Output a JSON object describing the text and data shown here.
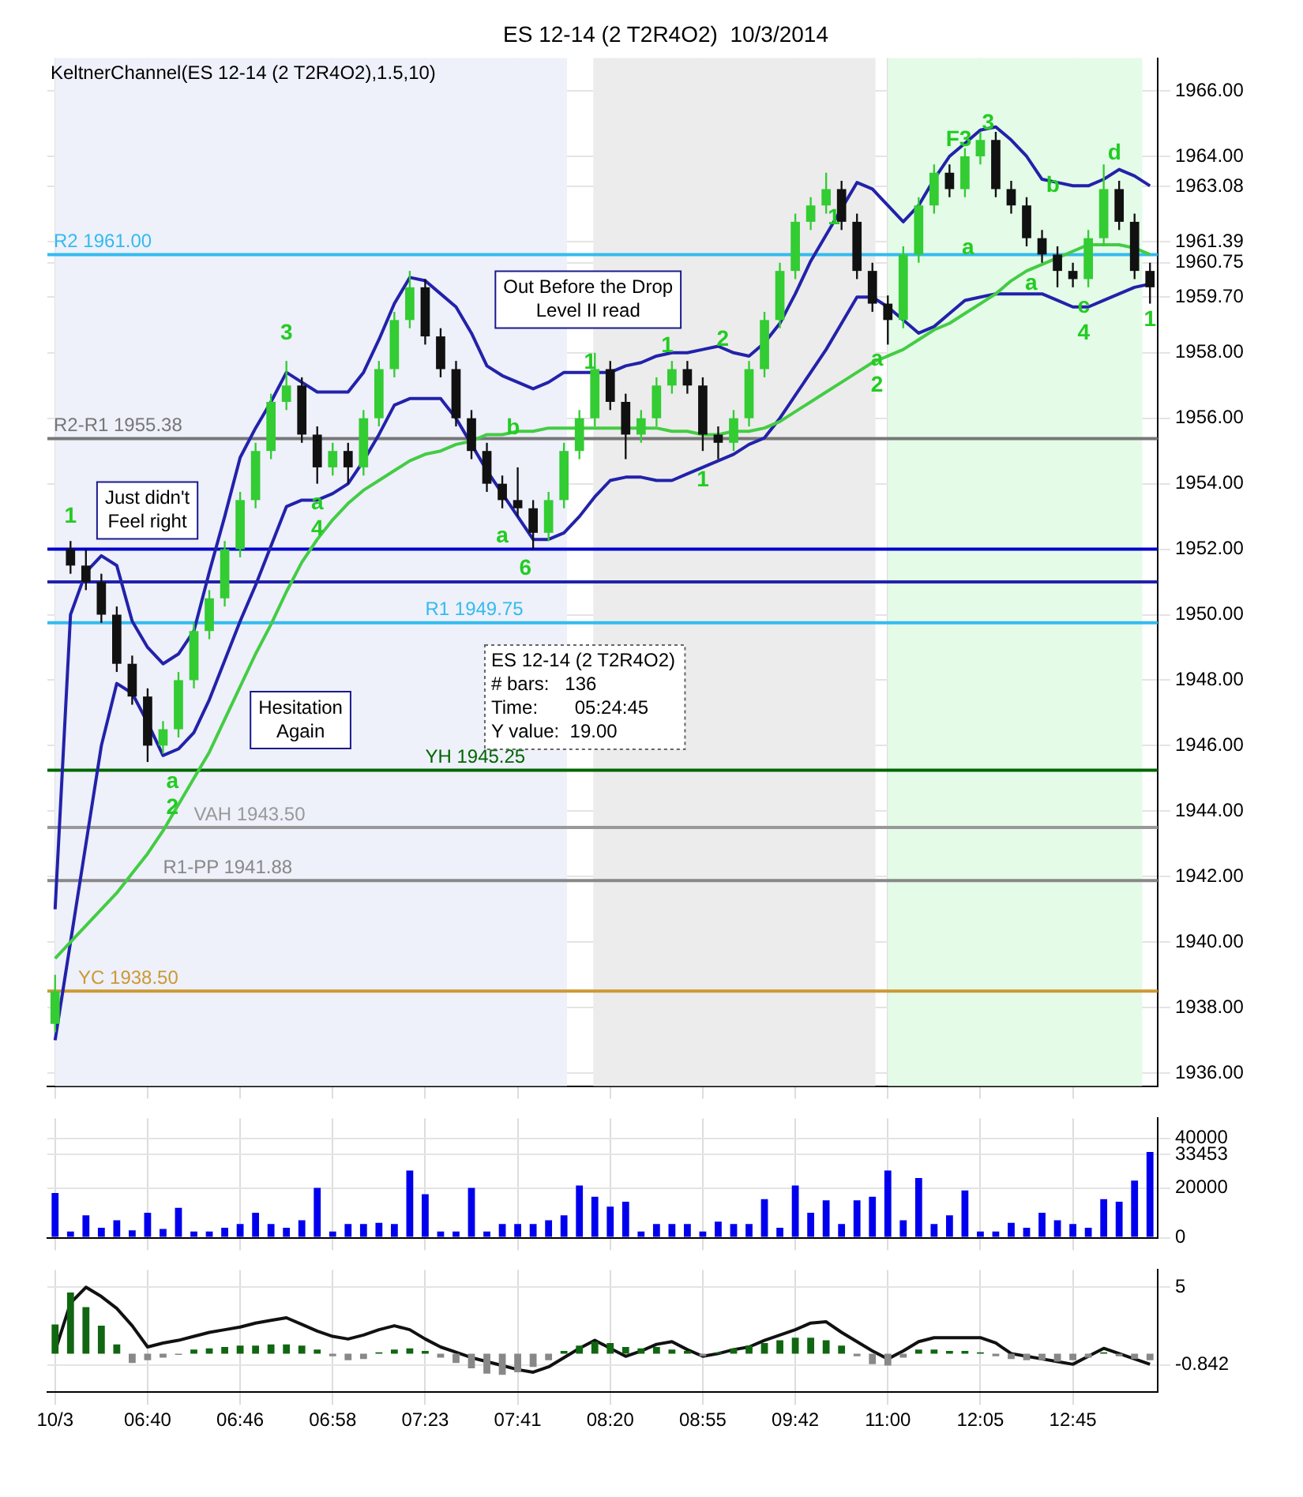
{
  "chart_data": [
    {
      "type": "candlestick",
      "title": "ES 12-14 (2 T2R4O2)  10/3/2014",
      "subtitle": "KeltnerChannel(ES 12-14 (2 T2R4O2),1.5,10)",
      "categories": [
        null,
        null,
        null,
        null,
        null,
        null,
        null,
        null,
        null,
        null,
        null,
        null,
        null,
        null,
        null,
        null,
        null,
        null,
        null,
        null,
        null,
        null,
        null,
        null,
        null,
        null,
        null,
        null,
        null,
        null,
        null,
        null,
        null,
        null,
        null,
        null,
        null,
        null,
        null,
        null,
        null,
        null,
        null,
        null,
        null,
        null,
        null,
        null,
        null,
        null,
        null,
        null,
        null,
        null,
        null,
        null,
        null,
        null,
        null,
        null,
        null,
        null,
        null,
        null,
        null,
        null,
        null,
        null,
        null,
        null,
        null,
        null
      ],
      "ohlc": [
        [
          1937.5,
          1939,
          1937.25,
          1938.5
        ],
        [
          1952,
          1952.25,
          1951.25,
          1951.5
        ],
        [
          1951.5,
          1952,
          1950.75,
          1951
        ],
        [
          1951,
          1951.25,
          1949.75,
          1950
        ],
        [
          1950,
          1950.25,
          1948.25,
          1948.5
        ],
        [
          1948.5,
          1948.75,
          1947.25,
          1947.5
        ],
        [
          1947.5,
          1947.75,
          1945.5,
          1946
        ],
        [
          1946,
          1946.75,
          1945.75,
          1946.5
        ],
        [
          1946.5,
          1948.25,
          1946.25,
          1948
        ],
        [
          1948,
          1949.75,
          1947.75,
          1949.5
        ],
        [
          1949.5,
          1950.75,
          1949.25,
          1950.5
        ],
        [
          1950.5,
          1952.25,
          1950.25,
          1952
        ],
        [
          1952,
          1953.75,
          1951.75,
          1953.5
        ],
        [
          1953.5,
          1955.25,
          1953.25,
          1955
        ],
        [
          1955,
          1956.75,
          1954.75,
          1956.5
        ],
        [
          1956.5,
          1957.75,
          1956.25,
          1957
        ],
        [
          1957,
          1957.25,
          1955.25,
          1955.5
        ],
        [
          1955.5,
          1955.75,
          1954,
          1954.5
        ],
        [
          1954.5,
          1955.25,
          1954.25,
          1955
        ],
        [
          1955,
          1955.25,
          1954,
          1954.5
        ],
        [
          1954.5,
          1956.25,
          1954.25,
          1956
        ],
        [
          1956,
          1957.75,
          1955.75,
          1957.5
        ],
        [
          1957.5,
          1959.25,
          1957.25,
          1959
        ],
        [
          1959,
          1960.5,
          1958.75,
          1960
        ],
        [
          1960,
          1960.25,
          1958.25,
          1958.5
        ],
        [
          1958.5,
          1958.75,
          1957.25,
          1957.5
        ],
        [
          1957.5,
          1957.75,
          1955.75,
          1956
        ],
        [
          1956,
          1956.25,
          1954.75,
          1955
        ],
        [
          1955,
          1955.25,
          1953.75,
          1954
        ],
        [
          1954,
          1954.25,
          1953.25,
          1953.5
        ],
        [
          1953.5,
          1954.5,
          1953,
          1953.25
        ],
        [
          1953.25,
          1953.5,
          1952,
          1952.5
        ],
        [
          1952.5,
          1953.75,
          1952.25,
          1953.5
        ],
        [
          1953.5,
          1955.25,
          1953.25,
          1955
        ],
        [
          1955,
          1956.25,
          1954.75,
          1956
        ],
        [
          1956,
          1958,
          1955.75,
          1957.5
        ],
        [
          1957.5,
          1957.75,
          1956.25,
          1956.5
        ],
        [
          1956.5,
          1956.75,
          1954.75,
          1955.5
        ],
        [
          1955.5,
          1956.25,
          1955.25,
          1956
        ],
        [
          1956,
          1957.25,
          1955.75,
          1957
        ],
        [
          1957,
          1957.75,
          1956.75,
          1957.5
        ],
        [
          1957.5,
          1957.75,
          1956.75,
          1957
        ],
        [
          1957,
          1957.25,
          1955,
          1955.5
        ],
        [
          1955.5,
          1955.75,
          1954.75,
          1955.25
        ],
        [
          1955.25,
          1956.25,
          1955,
          1956
        ],
        [
          1956,
          1957.75,
          1955.75,
          1957.5
        ],
        [
          1957.5,
          1959.25,
          1957.25,
          1959
        ],
        [
          1959,
          1960.75,
          1958.75,
          1960.5
        ],
        [
          1960.5,
          1962.25,
          1960.25,
          1962
        ],
        [
          1962,
          1962.75,
          1961.75,
          1962.5
        ],
        [
          1962.5,
          1963.5,
          1962.25,
          1963
        ],
        [
          1963,
          1963.25,
          1961.75,
          1962
        ],
        [
          1962,
          1962.25,
          1960.25,
          1960.5
        ],
        [
          1960.5,
          1960.75,
          1959.25,
          1959.5
        ],
        [
          1959.5,
          1959.75,
          1958.25,
          1959
        ],
        [
          1959,
          1961.25,
          1958.75,
          1961
        ],
        [
          1961,
          1962.75,
          1960.75,
          1962.5
        ],
        [
          1962.5,
          1963.75,
          1962.25,
          1963.5
        ],
        [
          1963.5,
          1963.75,
          1962.75,
          1963
        ],
        [
          1963,
          1964.25,
          1962.75,
          1964
        ],
        [
          1964,
          1964.75,
          1963.75,
          1964.5
        ],
        [
          1964.5,
          1964.75,
          1962.75,
          1963
        ],
        [
          1963,
          1963.25,
          1962.25,
          1962.5
        ],
        [
          1962.5,
          1962.75,
          1961.25,
          1961.5
        ],
        [
          1961.5,
          1961.75,
          1960.75,
          1961
        ],
        [
          1961,
          1961.25,
          1960,
          1960.5
        ],
        [
          1960.5,
          1960.75,
          1960,
          1960.25
        ],
        [
          1960.25,
          1961.75,
          1960,
          1961.5
        ],
        [
          1961.5,
          1963.75,
          1961.25,
          1963
        ],
        [
          1963,
          1963.25,
          1961.75,
          1962
        ],
        [
          1962,
          1962.25,
          1960.25,
          1960.5
        ],
        [
          1960.5,
          1960.75,
          1959.5,
          1960
        ]
      ],
      "series": [
        {
          "type": "line",
          "color": "#44cc44",
          "values": [
            1939.5,
            1940,
            1940.5,
            1941,
            1941.5,
            1942.1,
            1942.7,
            1943.4,
            1944.2,
            1945,
            1945.8,
            1946.8,
            1947.8,
            1948.8,
            1949.7,
            1950.7,
            1951.6,
            1952.3,
            1952.9,
            1953.4,
            1953.8,
            1954.1,
            1954.4,
            1954.7,
            1954.9,
            1955,
            1955.2,
            1955.3,
            1955.5,
            1955.5,
            1955.6,
            1955.6,
            1955.7,
            1955.7,
            1955.7,
            1955.7,
            1955.7,
            1955.7,
            1955.7,
            1955.7,
            1955.6,
            1955.6,
            1955.5,
            1955.5,
            1955.6,
            1955.6,
            1955.7,
            1955.9,
            1956.2,
            1956.5,
            1956.8,
            1957.1,
            1957.4,
            1957.7,
            1957.9,
            1958.1,
            1958.4,
            1958.7,
            1958.9,
            1959.2,
            1959.5,
            1959.8,
            1960.2,
            1960.5,
            1960.7,
            1960.9,
            1961.1,
            1961.3,
            1961.3,
            1961.3,
            1961.2,
            1961
          ]
        },
        {
          "type": "line",
          "color": "#2222aa",
          "values": [
            1941,
            1950,
            1951.3,
            1951.8,
            1951.5,
            1949.8,
            1949,
            1948.5,
            1948.8,
            1949.5,
            1951.3,
            1953,
            1954.8,
            1955.7,
            1956.5,
            1957.4,
            1957.1,
            1956.8,
            1956.8,
            1956.8,
            1957.4,
            1958.4,
            1959.5,
            1960.3,
            1960.2,
            1959.8,
            1959.4,
            1958.6,
            1957.6,
            1957.3,
            1957.1,
            1956.9,
            1957.1,
            1957.4,
            1957.4,
            1957.4,
            1957.4,
            1957.6,
            1957.7,
            1957.9,
            1958,
            1958,
            1958.1,
            1958.2,
            1958,
            1957.9,
            1958.3,
            1958.9,
            1959.8,
            1960.8,
            1961.6,
            1962.4,
            1963.2,
            1963,
            1962.5,
            1962,
            1962.5,
            1963.3,
            1964,
            1964.4,
            1964.8,
            1964.9,
            1964.5,
            1964,
            1963.3,
            1963.2,
            1963.1,
            1963.1,
            1963.3,
            1963.6,
            1963.4,
            1963.1
          ]
        },
        {
          "type": "line",
          "color": "#2222aa",
          "values": [
            1937,
            1940,
            1943,
            1946,
            1947.9,
            1947.6,
            1946.7,
            1945.7,
            1945.9,
            1946.4,
            1947.4,
            1948.6,
            1949.8,
            1950.9,
            1952.1,
            1953.3,
            1953.5,
            1953.5,
            1953.7,
            1954,
            1954.7,
            1955.5,
            1956.4,
            1956.6,
            1956.6,
            1956.6,
            1956,
            1955.2,
            1954.4,
            1953.7,
            1953,
            1952.3,
            1952.3,
            1952.5,
            1953,
            1953.6,
            1954.1,
            1954.2,
            1954.2,
            1954.1,
            1954.1,
            1954.3,
            1954.5,
            1954.7,
            1954.9,
            1955.2,
            1955.4,
            1956,
            1956.7,
            1957.4,
            1958.1,
            1958.9,
            1959.7,
            1959.7,
            1959.4,
            1959,
            1958.6,
            1958.8,
            1959.2,
            1959.6,
            1959.7,
            1959.8,
            1959.8,
            1959.8,
            1959.8,
            1959.6,
            1959.4,
            1959.4,
            1959.6,
            1959.8,
            1960,
            1960.1
          ]
        }
      ],
      "ylim": [
        1935.6,
        1967
      ],
      "yticks": [
        {
          "value": 1936,
          "label": "1936.00"
        },
        {
          "value": 1938,
          "label": "1938.00"
        },
        {
          "value": 1940,
          "label": "1940.00"
        },
        {
          "value": 1942,
          "label": "1942.00"
        },
        {
          "value": 1944,
          "label": "1944.00"
        },
        {
          "value": 1946,
          "label": "1946.00"
        },
        {
          "value": 1948,
          "label": "1948.00"
        },
        {
          "value": 1950,
          "label": "1950.00"
        },
        {
          "value": 1952,
          "label": "1952.00"
        },
        {
          "value": 1954,
          "label": "1954.00"
        },
        {
          "value": 1956,
          "label": "1956.00"
        },
        {
          "value": 1958,
          "label": "1958.00"
        },
        {
          "value": 1959.7,
          "label": "1959.70"
        },
        1960.75,
        1961.39,
        1963.08,
        {
          "value": 1964,
          "label": "1964.00"
        },
        {
          "value": 1966,
          "label": "1966.00"
        }
      ],
      "tick_labels": "y",
      "grid": true,
      "legend": false,
      "marker": "none",
      "ref_lines": [
        {
          "axis": "y",
          "value": 1961,
          "label": "R2 1961.00",
          "color": "#33bbee"
        },
        {
          "axis": "y",
          "value": 1955.38,
          "label": "R2-R1 1955.38",
          "color": "#777777"
        },
        {
          "axis": "y",
          "value": 1952,
          "label": null,
          "color": "#0000cc"
        },
        {
          "axis": "y",
          "value": 1951,
          "label": null,
          "color": "#2222aa"
        },
        {
          "axis": "y",
          "value": 1949.75,
          "label": "R1 1949.75",
          "color": "#33bbee"
        },
        {
          "axis": "y",
          "value": 1945.25,
          "label": "YH 1945.25",
          "color": "#006600"
        },
        {
          "axis": "y",
          "value": 1943.5,
          "label": "VAH 1943.50",
          "color": "#999999"
        },
        {
          "axis": "y",
          "value": 1941.88,
          "label": "R1-PP 1941.88",
          "color": "#888888"
        },
        {
          "axis": "y",
          "value": 1938.5,
          "label": "YC 1938.50",
          "color": "#cc9933"
        }
      ],
      "annotations": [
        "Just didn't Feel right",
        "Out Before the Drop Level II read",
        "Hesitation Again",
        "ES 12-14 (2 T2R4O2)",
        "# bars:   136",
        "Time:       05:24:45",
        "Y value:  19.00",
        "1",
        "a",
        "2",
        "3",
        "a",
        "4",
        "b",
        "a",
        "6",
        "1",
        "1",
        "2",
        "1",
        "1",
        "a",
        "2",
        "F3",
        "3",
        "a",
        "b",
        "a",
        "c",
        "4",
        "d",
        "1"
      ]
    },
    {
      "type": "bar",
      "color": "#0000ee",
      "categories": [
        null,
        null,
        null,
        null,
        null,
        null,
        null,
        null,
        null,
        null,
        null,
        null,
        null,
        null,
        null,
        null,
        null,
        null,
        null,
        null,
        null,
        null,
        null,
        null,
        null,
        null,
        null,
        null,
        null,
        null,
        null,
        null,
        null,
        null,
        null,
        null,
        null,
        null,
        null,
        null,
        null,
        null,
        null,
        null,
        null,
        null,
        null,
        null,
        null,
        null,
        null,
        null,
        null,
        null,
        null,
        null,
        null,
        null,
        null,
        null,
        null,
        null,
        null,
        null,
        null,
        null,
        null,
        null,
        null,
        null,
        null,
        null
      ],
      "values": [
        18000,
        2500,
        9000,
        4000,
        7000,
        3000,
        10000,
        3500,
        12000,
        2500,
        2500,
        4000,
        5500,
        10000,
        5500,
        4000,
        7000,
        20000,
        2500,
        5500,
        5500,
        6000,
        5500,
        27000,
        17500,
        2500,
        2500,
        20000,
        2500,
        5500,
        5500,
        5500,
        7000,
        9000,
        21000,
        16500,
        12500,
        14500,
        2500,
        5500,
        5500,
        5500,
        2500,
        6500,
        5500,
        5500,
        15500,
        4000,
        21000,
        10000,
        15000,
        5500,
        15000,
        16500,
        27000,
        7000,
        24000,
        5500,
        9000,
        19000,
        2500,
        2500,
        6000,
        4000,
        10000,
        7000,
        5500,
        4000,
        15500,
        14500,
        23000,
        34500
      ],
      "ylim": [
        0,
        48000
      ],
      "yticks": [
        0,
        20000,
        33453,
        40000
      ],
      "tick_labels": "y",
      "grid": true,
      "legend": false
    },
    {
      "type": "bar",
      "categories": [
        "10/3",
        null,
        null,
        null,
        null,
        null,
        "06:40",
        null,
        null,
        null,
        null,
        null,
        "06:46",
        null,
        null,
        null,
        null,
        null,
        "06:58",
        null,
        null,
        null,
        null,
        null,
        "07:23",
        null,
        null,
        null,
        null,
        null,
        "07:41",
        null,
        null,
        null,
        null,
        null,
        "08:20",
        null,
        null,
        null,
        null,
        null,
        "08:55",
        null,
        null,
        null,
        null,
        null,
        "09:42",
        null,
        null,
        null,
        null,
        null,
        "11:00",
        null,
        null,
        null,
        null,
        null,
        "12:05",
        null,
        null,
        null,
        null,
        null,
        "12:45",
        null,
        null,
        null,
        null,
        null
      ],
      "series": [
        {
          "type": "bar",
          "values": [
            2.2,
            4.6,
            3.5,
            2.1,
            0.7,
            -0.7,
            -0.5,
            -0.3,
            -0.1,
            0.3,
            0.4,
            0.5,
            0.6,
            0.6,
            0.7,
            0.7,
            0.6,
            0.3,
            -0.2,
            -0.5,
            -0.4,
            0.1,
            0.3,
            0.4,
            0.2,
            -0.3,
            -0.7,
            -1.1,
            -1.5,
            -1.6,
            -1.4,
            -1,
            -0.5,
            0.2,
            0.6,
            0.9,
            0.8,
            0.5,
            0.4,
            0.5,
            0.3,
            0.2,
            -0.2,
            0.1,
            0.4,
            0.6,
            0.8,
            1,
            1.2,
            1.2,
            1,
            0.6,
            -0.2,
            -0.8,
            -0.9,
            -0.3,
            0.3,
            0.3,
            0.2,
            0.2,
            0.1,
            -0.2,
            -0.4,
            -0.5,
            -0.5,
            -0.6,
            -0.5,
            -0.3,
            0.1,
            -0.2,
            -0.4,
            -0.5
          ],
          "colors": [
            "#116611",
            "#116611",
            "#116611",
            "#116611",
            "#116611",
            "#888888",
            "#888888",
            "#888888",
            "#888888",
            "#116611",
            "#116611",
            "#116611",
            "#116611",
            "#116611",
            "#116611",
            "#116611",
            "#116611",
            "#116611",
            "#888888",
            "#888888",
            "#888888",
            "#116611",
            "#116611",
            "#116611",
            "#116611",
            "#888888",
            "#888888",
            "#888888",
            "#888888",
            "#888888",
            "#888888",
            "#888888",
            "#888888",
            "#116611",
            "#116611",
            "#116611",
            "#116611",
            "#116611",
            "#116611",
            "#116611",
            "#116611",
            "#116611",
            "#888888",
            "#116611",
            "#116611",
            "#116611",
            "#116611",
            "#116611",
            "#116611",
            "#116611",
            "#116611",
            "#116611",
            "#888888",
            "#888888",
            "#888888",
            "#888888",
            "#116611",
            "#116611",
            "#116611",
            "#116611",
            "#116611",
            "#888888",
            "#888888",
            "#888888",
            "#888888",
            "#888888",
            "#888888",
            "#888888",
            "#116611",
            "#888888",
            "#888888",
            "#888888"
          ]
        },
        {
          "type": "line",
          "color": "#111111",
          "values": [
            0.2,
            3.8,
            5,
            4.3,
            3.4,
            2.1,
            0.5,
            0.8,
            1,
            1.3,
            1.6,
            1.8,
            2,
            2.3,
            2.5,
            2.7,
            2.2,
            1.7,
            1.3,
            1.1,
            1.4,
            1.8,
            2.1,
            1.8,
            1.1,
            0.5,
            0.1,
            -0.3,
            -0.6,
            -0.9,
            -1.2,
            -1.4,
            -1,
            -0.3,
            0.4,
            1,
            0.4,
            -0.2,
            0.2,
            0.7,
            0.9,
            0.3,
            -0.2,
            0,
            0.3,
            0.5,
            1,
            1.4,
            1.8,
            2.3,
            2.4,
            1.6,
            0.9,
            0.2,
            -0.4,
            0.2,
            0.9,
            1.2,
            1.2,
            1.2,
            1.2,
            0.8,
            0,
            -0.2,
            -0.4,
            -0.6,
            -0.8,
            -0.2,
            0.4,
            0,
            -0.4,
            -0.8
          ]
        }
      ],
      "ylim": [
        -2.9,
        6.3
      ],
      "yticks": [
        -0.842,
        5
      ],
      "grid": true,
      "legend": false,
      "marker": "none"
    }
  ]
}
